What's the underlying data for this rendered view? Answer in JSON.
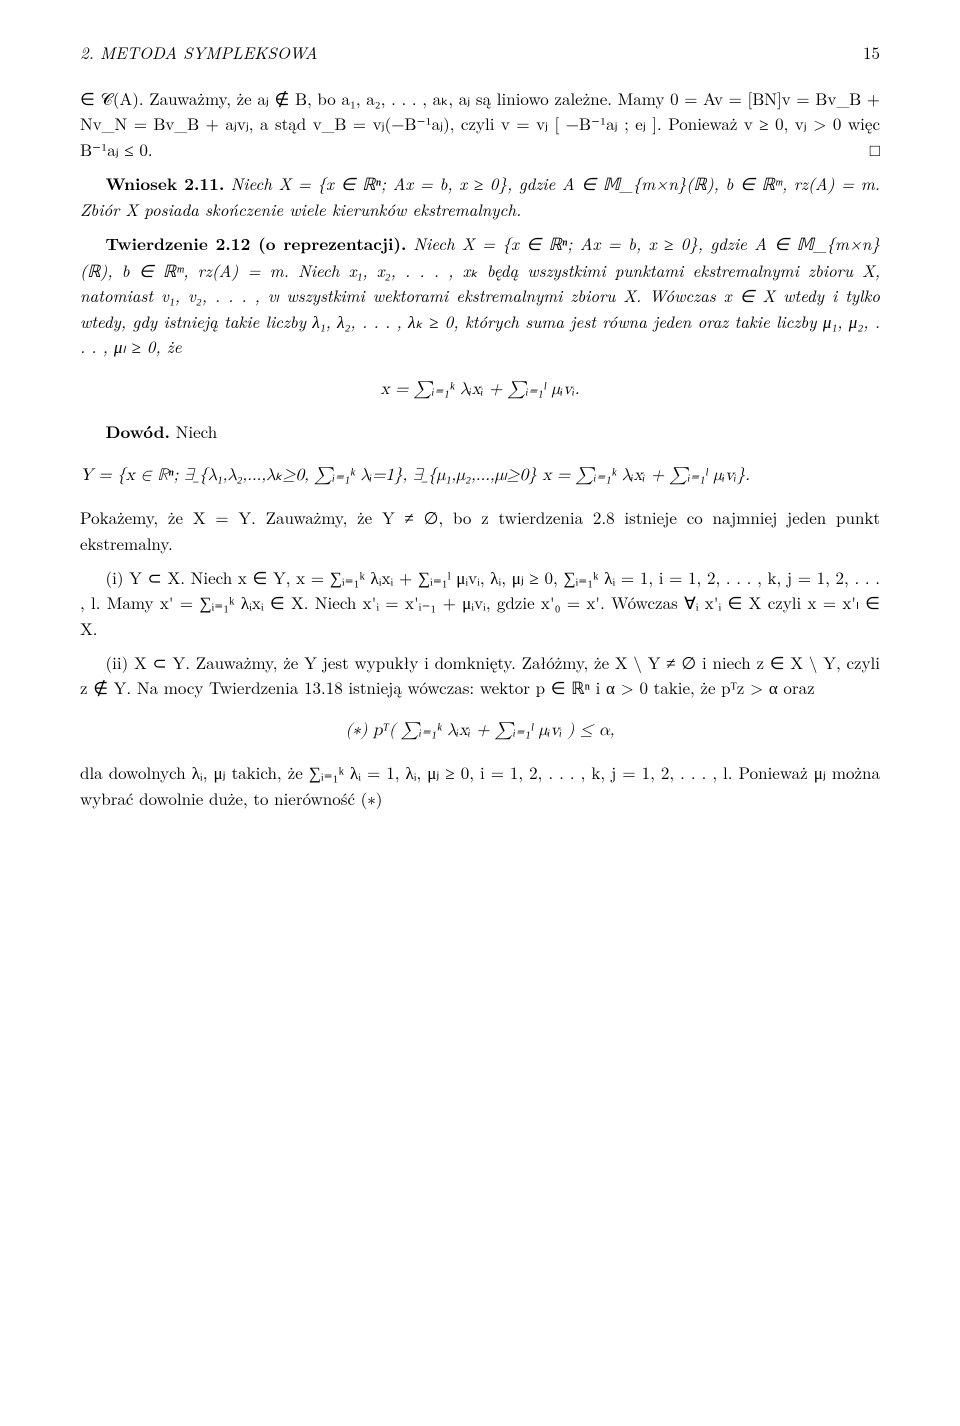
{
  "header": {
    "title": "2. METODA SYMPLEKSOWA",
    "page_number": "15"
  },
  "para1": "∈ 𝒞(A). Zauważmy, że aⱼ ∉ B, bo a₁, a₂, . . . , aₖ, aⱼ są liniowo zależne. Mamy 0 = Av = [BN]v = Bv_B + Nv_N = Bv_B + aⱼvⱼ, a stąd v_B = vⱼ(−B⁻¹aⱼ), czyli v = vⱼ [ −B⁻¹aⱼ ; eⱼ ]. Ponieważ v ≥ 0, vⱼ > 0 więc B⁻¹aⱼ ≤ 0.",
  "qed": "□",
  "wniosek_label": "Wniosek 2.11.",
  "wniosek_body": " Niech X = {x ∈ ℝⁿ; Ax = b, x ≥ 0}, gdzie A ∈ 𝕄_{m×n}(ℝ), b ∈ ℝᵐ, rz(A) = m. Zbiór X posiada skończenie wiele kierunków ekstremalnych.",
  "twierdzenie_label": "Twierdzenie 2.12 (o reprezentacji).",
  "twierdzenie_body": " Niech X = {x ∈ ℝⁿ; Ax = b, x ≥ 0}, gdzie A ∈ 𝕄_{m×n}(ℝ), b ∈ ℝᵐ, rz(A) = m. Niech x₁, x₂, . . . , xₖ będą wszystkimi punktami ekstremalnymi zbioru X, natomiast v₁, v₂, . . . , vₗ wszystkimi wektorami ekstremalnymi zbioru X. Wówczas x ∈ X wtedy i tylko wtedy, gdy istnieją takie liczby λ₁, λ₂, . . . , λₖ ≥ 0, których suma jest równa jeden oraz takie liczby μ₁, μ₂, . . . , μₗ ≥ 0, że",
  "formula1": "x = ∑ᵢ₌₁ᵏ λᵢxᵢ + ∑ᵢ₌₁ˡ μᵢvᵢ.",
  "dowod_label": "Dowód.",
  "dowod_niech": " Niech",
  "formula2": "Y = {x ∈ ℝⁿ; ∃_{λ₁,λ₂,...,λₖ≥0, ∑ᵢ₌₁ᵏ λᵢ=1}, ∃_{μ₁,μ₂,...,μₗ≥0}  x = ∑ᵢ₌₁ᵏ λᵢxᵢ + ∑ᵢ₌₁ˡ μᵢvᵢ}.",
  "para_pokazemy": "Pokażemy, że X = Y. Zauważmy, że Y ≠ ∅, bo z twierdzenia 2.8 istnieje co najmniej jeden punkt ekstremalny.",
  "proof_i": "(i) Y ⊂ X. Niech x ∈ Y, x = ∑ᵢ₌₁ᵏ λᵢxᵢ + ∑ᵢ₌₁ˡ μᵢvᵢ, λᵢ, μⱼ ≥ 0, ∑ᵢ₌₁ᵏ λᵢ = 1, i = 1, 2, . . . , k, j = 1, 2, . . . , l. Mamy x' = ∑ᵢ₌₁ᵏ λᵢxᵢ ∈ X. Niech x'ᵢ = x'ᵢ₋₁ + μᵢvᵢ, gdzie x'₀ = x'. Wówczas ∀ᵢ x'ᵢ ∈ X czyli x = x'ₗ ∈ X.",
  "proof_ii": "(ii) X ⊂ Y. Zauważmy, że Y jest wypukły i domknięty. Załóżmy, że X \\ Y ≠ ∅ i niech z ∈ X \\ Y, czyli z ∉ Y. Na mocy Twierdzenia 13.18 istnieją wówczas: wektor p ∈ ℝⁿ i α > 0 takie, że pᵀz > α oraz",
  "formula3": "(∗)  pᵀ( ∑ᵢ₌₁ᵏ λᵢxᵢ + ∑ᵢ₌₁ˡ μᵢvᵢ ) ≤ α,",
  "para_last": "dla dowolnych λᵢ, μⱼ takich, że ∑ᵢ₌₁ᵏ λᵢ = 1, λᵢ, μⱼ ≥ 0, i = 1, 2, . . . , k, j = 1, 2, . . . , l. Ponieważ μⱼ można wybrać dowolnie duże, to nierówność (∗)",
  "typography": {
    "body_font": "Latin Modern Roman",
    "body_fontsize": 17,
    "header_fontsize": 17,
    "line_height": 1.5,
    "text_color": "#000000",
    "background_color": "#ffffff"
  }
}
